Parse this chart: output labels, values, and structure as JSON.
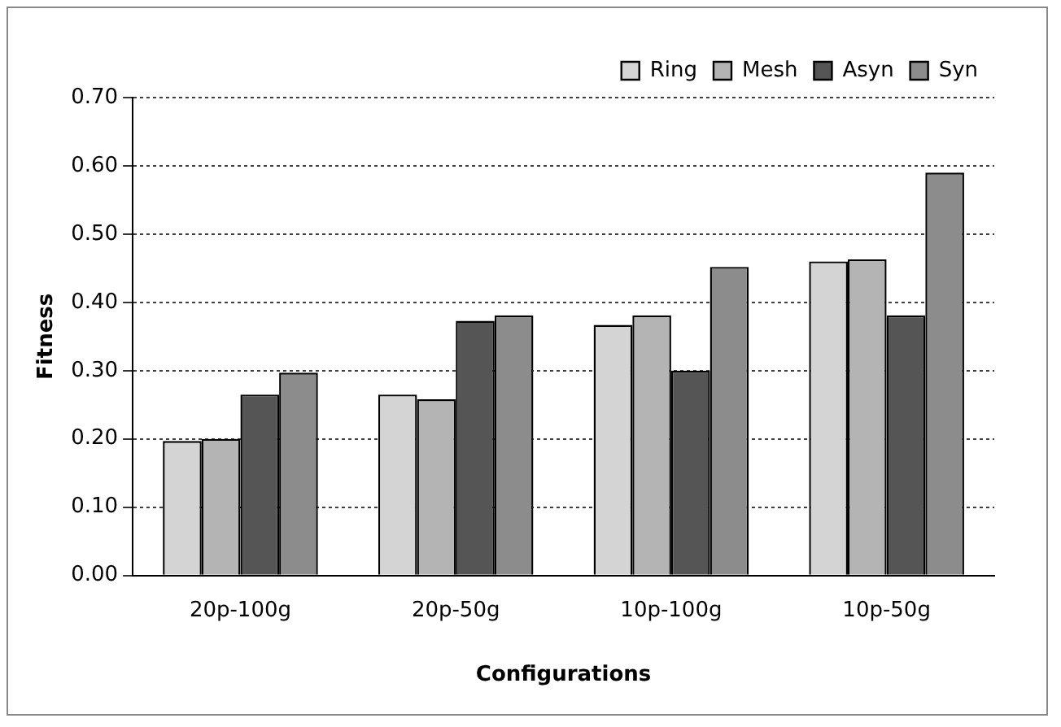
{
  "chart_data": {
    "type": "bar",
    "xlabel": "Configurations",
    "ylabel": "Fitness",
    "categories": [
      "20p-100g",
      "20p-50g",
      "10p-100g",
      "10p-50g"
    ],
    "series": [
      {
        "name": "Ring",
        "color": "#d4d4d4",
        "values": [
          0.197,
          0.265,
          0.367,
          0.46
        ]
      },
      {
        "name": "Mesh",
        "color": "#b4b4b4",
        "values": [
          0.2,
          0.258,
          0.381,
          0.463
        ]
      },
      {
        "name": "Asyn",
        "color": "#555555",
        "values": [
          0.265,
          0.373,
          0.3,
          0.381
        ]
      },
      {
        "name": "Syn",
        "color": "#8c8c8c",
        "values": [
          0.297,
          0.381,
          0.452,
          0.59
        ]
      }
    ],
    "ylim": [
      0,
      0.7
    ],
    "yticks": [
      {
        "value": 0,
        "label": "0.00"
      },
      {
        "value": 0.1,
        "label": "0.10"
      },
      {
        "value": 0.2,
        "label": "0.20"
      },
      {
        "value": 0.3,
        "label": "0.30"
      },
      {
        "value": 0.4,
        "label": "0.40"
      },
      {
        "value": 0.5,
        "label": "0.50"
      },
      {
        "value": 0.6,
        "label": "0.60"
      },
      {
        "value": 0.7,
        "label": "0.70"
      }
    ],
    "grid": "y",
    "legend": "top right"
  }
}
